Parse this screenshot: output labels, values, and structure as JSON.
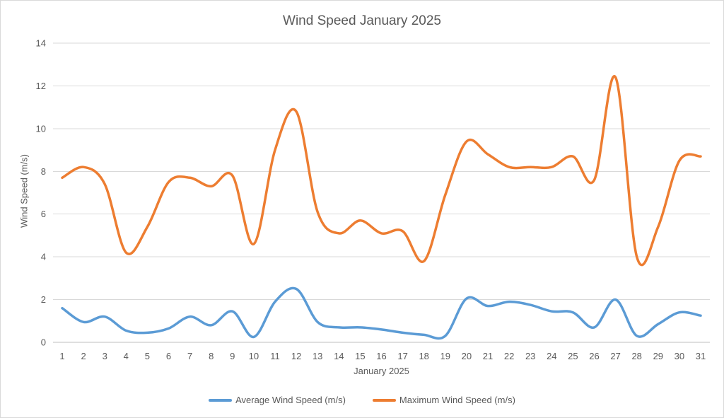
{
  "chart_data": {
    "type": "line",
    "title": "Wind Speed January 2025",
    "xlabel": "January 2025",
    "ylabel": "Wind Speed (m/s)",
    "categories": [
      1,
      2,
      3,
      4,
      5,
      6,
      7,
      8,
      9,
      10,
      11,
      12,
      13,
      14,
      15,
      16,
      17,
      18,
      19,
      20,
      21,
      22,
      23,
      24,
      25,
      26,
      27,
      28,
      29,
      30,
      31
    ],
    "y_ticks": [
      0,
      2,
      4,
      6,
      8,
      10,
      12,
      14
    ],
    "ylim": [
      0,
      14
    ],
    "grid": true,
    "smooth": true,
    "legend_position": "bottom",
    "background": "#FFFFFF",
    "colors": {
      "text": "#595959",
      "gridline": "#D9D9D9",
      "axis_line": "#BFBFBF",
      "border": "#D9D9D9"
    },
    "series": [
      {
        "name": "Average Wind Speed (m/s)",
        "color": "#5B9BD5",
        "values": [
          1.6,
          0.95,
          1.2,
          0.55,
          0.45,
          0.65,
          1.2,
          0.8,
          1.45,
          0.25,
          1.9,
          2.5,
          0.95,
          0.7,
          0.7,
          0.6,
          0.45,
          0.35,
          0.3,
          2.05,
          1.7,
          1.9,
          1.75,
          1.45,
          1.4,
          0.7,
          2.0,
          0.3,
          0.85,
          1.4,
          1.25
        ]
      },
      {
        "name": "Maximum Wind Speed (m/s)",
        "color": "#ED7D31",
        "values": [
          7.7,
          8.2,
          7.4,
          4.2,
          5.4,
          7.5,
          7.7,
          7.3,
          7.8,
          4.6,
          9.0,
          10.8,
          6.1,
          5.1,
          5.7,
          5.1,
          5.2,
          3.8,
          6.9,
          9.4,
          8.8,
          8.2,
          8.2,
          8.2,
          8.7,
          7.6,
          12.4,
          4.0,
          5.4,
          8.5,
          8.7
        ]
      }
    ]
  }
}
